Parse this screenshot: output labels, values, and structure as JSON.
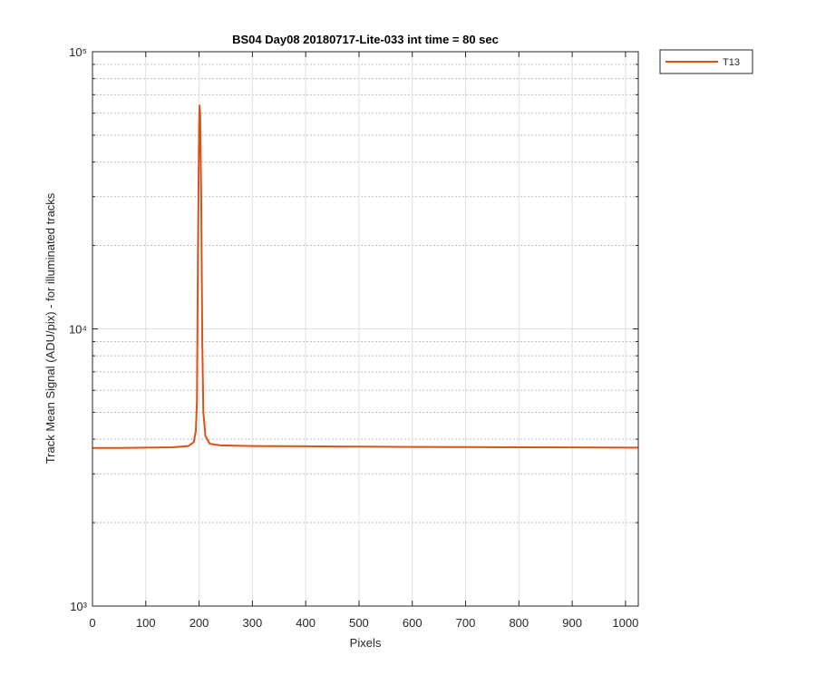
{
  "chart_data": {
    "type": "line",
    "title": "BS04 Day08 20180717-Lite-033 int time = 80 sec",
    "x_label": "Pixels",
    "y_label": "Track Mean Signal (ADU/pix) - for illuminated tracks",
    "x": [
      0,
      50,
      100,
      150,
      180,
      190,
      194,
      196,
      198,
      200,
      201,
      202,
      204,
      206,
      208,
      212,
      220,
      240,
      300,
      400,
      500,
      600,
      700,
      800,
      900,
      1000,
      1023
    ],
    "series": [
      {
        "name": "T13",
        "color": "#D95319",
        "values": [
          3720,
          3720,
          3730,
          3740,
          3780,
          3900,
          4300,
          5500,
          20000,
          55000,
          64000,
          60000,
          30000,
          9000,
          5000,
          4100,
          3850,
          3800,
          3780,
          3770,
          3760,
          3750,
          3745,
          3740,
          3735,
          3730,
          3730
        ]
      }
    ],
    "xlim": [
      0,
      1024
    ],
    "xticks": [
      0,
      100,
      200,
      300,
      400,
      500,
      600,
      700,
      800,
      900,
      1000
    ],
    "ylim": [
      1000,
      100000
    ],
    "yticks": [
      {
        "value": 1000,
        "label": "10³"
      },
      {
        "value": 10000,
        "label": "10⁴"
      },
      {
        "value": 100000,
        "label": "10⁵"
      }
    ],
    "y_scale": "log",
    "grid": true,
    "legend_position": "northeastoutside"
  }
}
